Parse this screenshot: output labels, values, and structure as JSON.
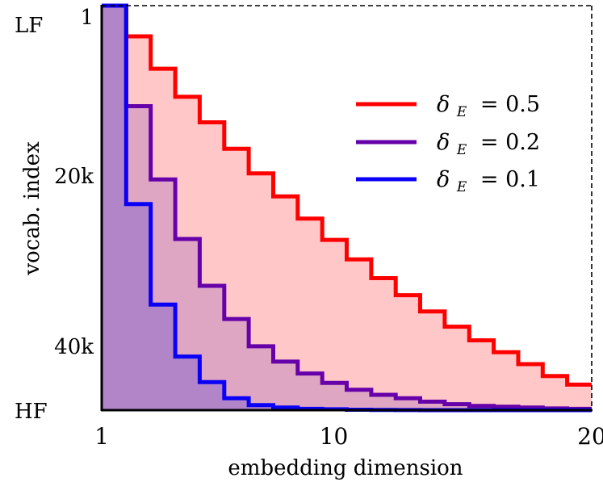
{
  "chart_data": {
    "type": "area",
    "step": true,
    "title": "",
    "xlabel": "embedding dimension",
    "ylabel": "vocab. index",
    "xlim": [
      1,
      20
    ],
    "ylim": [
      0,
      47500
    ],
    "y_inverted": true,
    "x_ticks": [
      {
        "value": 1,
        "label": "1"
      },
      {
        "value": 10,
        "label": "10"
      },
      {
        "value": 20,
        "label": "20"
      }
    ],
    "y_ticks": [
      {
        "value": 0,
        "label": "1"
      },
      {
        "value": 20000,
        "label": "20k"
      },
      {
        "value": 40000,
        "label": "40k"
      }
    ],
    "y_end_labels": {
      "top": "LF",
      "bottom": "HF"
    },
    "legend_position": "upper-right",
    "x": [
      1,
      2,
      3,
      4,
      5,
      6,
      7,
      8,
      9,
      10,
      11,
      12,
      13,
      14,
      15,
      16,
      17,
      18,
      19,
      20
    ],
    "series": [
      {
        "name": "δ_E = 0.5",
        "legend_symbol": "δ",
        "legend_subscript": "E",
        "legend_value": "= 0.5",
        "color": "#ff0000",
        "fill": "#ffc7c8",
        "values": [
          0,
          3600,
          7400,
          10700,
          13700,
          16800,
          19700,
          22400,
          25000,
          27500,
          29800,
          32000,
          34000,
          35900,
          37700,
          39300,
          40700,
          42100,
          43500,
          44500
        ]
      },
      {
        "name": "δ_E = 0.2",
        "legend_symbol": "δ",
        "legend_subscript": "E",
        "legend_value": "= 0.2",
        "color": "#6600a8",
        "fill": "#dfa6c4",
        "values": [
          0,
          11800,
          20400,
          27400,
          32900,
          36800,
          40000,
          41800,
          43200,
          44300,
          45100,
          45700,
          46100,
          46500,
          46800,
          47000,
          47100,
          47200,
          47300,
          47350
        ]
      },
      {
        "name": "δ_E = 0.1",
        "legend_symbol": "δ",
        "legend_subscript": "E",
        "legend_value": "= 0.1",
        "color": "#0a00f5",
        "fill": "#b285c9",
        "values": [
          0,
          23300,
          35100,
          41200,
          44200,
          46100,
          46900,
          47200,
          47350,
          47400,
          47450,
          47480,
          47490,
          47500,
          47500,
          47500,
          47500,
          47500,
          47500,
          47500
        ]
      }
    ]
  }
}
